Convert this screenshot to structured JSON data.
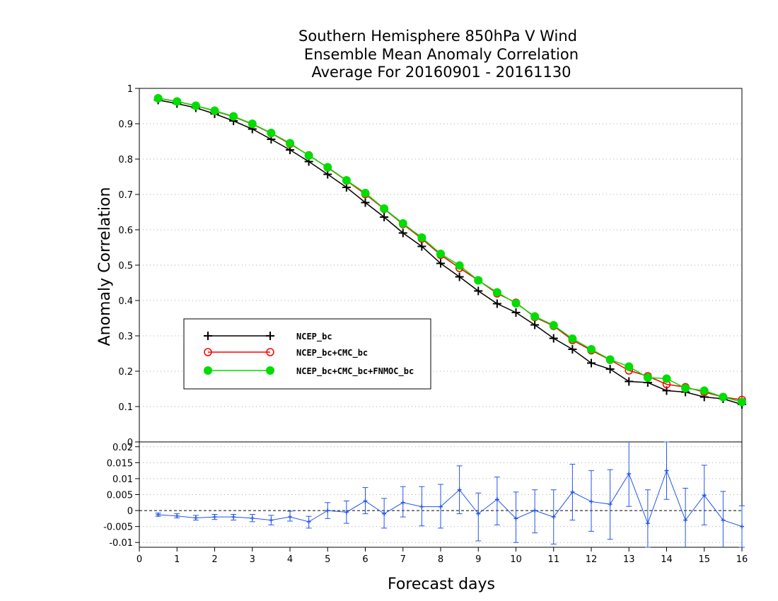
{
  "chart_data": [
    {
      "type": "line",
      "title_lines": [
        "Southern Hemisphere 850hPa V Wind",
        "Ensemble Mean Anomaly Correlation",
        "Average For 20160901 - 20161130"
      ],
      "xlabel": "Forecast days",
      "ylabel": "Anomaly Correlation",
      "xlim": [
        0,
        16
      ],
      "ylim": [
        0,
        1
      ],
      "x_ticks": [
        "0",
        "1",
        "2",
        "3",
        "4",
        "5",
        "6",
        "7",
        "8",
        "9",
        "10",
        "11",
        "12",
        "13",
        "14",
        "15",
        "16"
      ],
      "y_ticks": [
        "0",
        "0.1",
        "0.2",
        "0.3",
        "0.4",
        "0.5",
        "0.6",
        "0.7",
        "0.8",
        "0.9",
        "1"
      ],
      "grid": "horizontal dotted",
      "legend_position": "left-middle",
      "x": [
        0.5,
        1,
        1.5,
        2,
        2.5,
        3,
        3.5,
        4,
        4.5,
        5,
        5.5,
        6,
        6.5,
        7,
        7.5,
        8,
        8.5,
        9,
        9.5,
        10,
        10.5,
        11,
        11.5,
        12,
        12.5,
        13,
        13.5,
        14,
        14.5,
        15,
        15.5,
        16
      ],
      "series": [
        {
          "name": "NCEP_bc",
          "color": "#000000",
          "marker": "plus",
          "values": [
            0.967,
            0.957,
            0.945,
            0.928,
            0.908,
            0.885,
            0.856,
            0.826,
            0.793,
            0.757,
            0.72,
            0.677,
            0.636,
            0.591,
            0.553,
            0.505,
            0.467,
            0.427,
            0.391,
            0.366,
            0.331,
            0.293,
            0.262,
            0.223,
            0.206,
            0.171,
            0.168,
            0.145,
            0.141,
            0.127,
            0.122,
            0.106
          ]
        },
        {
          "name": "NCEP_bc+CMC_bc",
          "color": "#ff0000",
          "marker": "open-circle",
          "values": [
            0.972,
            0.963,
            0.951,
            0.936,
            0.92,
            0.899,
            0.873,
            0.843,
            0.811,
            0.776,
            0.739,
            0.701,
            0.659,
            0.616,
            0.575,
            0.529,
            0.492,
            0.457,
            0.42,
            0.394,
            0.353,
            0.328,
            0.288,
            0.259,
            0.232,
            0.202,
            0.186,
            0.163,
            0.155,
            0.141,
            0.127,
            0.119
          ]
        },
        {
          "name": "NCEP_bc+CMC_bc+FNMOC_bc",
          "color": "#00dd00",
          "marker": "filled-circle",
          "values": [
            0.972,
            0.963,
            0.951,
            0.937,
            0.921,
            0.9,
            0.874,
            0.845,
            0.81,
            0.777,
            0.74,
            0.704,
            0.66,
            0.618,
            0.578,
            0.532,
            0.499,
            0.457,
            0.423,
            0.392,
            0.355,
            0.33,
            0.292,
            0.262,
            0.233,
            0.213,
            0.182,
            0.179,
            0.152,
            0.145,
            0.127,
            0.113
          ]
        }
      ]
    },
    {
      "type": "line",
      "xlabel": "Forecast days",
      "xlim": [
        0,
        16
      ],
      "ylim": [
        -0.0115,
        0.0215
      ],
      "y_ticks": [
        "-0.01",
        "-0.005",
        "0",
        "0.005",
        "0.01",
        "0.015",
        "0.02"
      ],
      "x_ticks": [
        "0",
        "1",
        "2",
        "3",
        "4",
        "5",
        "6",
        "7",
        "8",
        "9",
        "10",
        "11",
        "12",
        "13",
        "14",
        "15",
        "16"
      ],
      "grid": "horizontal dotted",
      "zero_line": "dashed",
      "series": [
        {
          "color": "#2255ee",
          "marker": "error-bars",
          "x": [
            0.5,
            1,
            1.5,
            2,
            2.5,
            3,
            3.5,
            4,
            4.5,
            5,
            5.5,
            6,
            6.5,
            7,
            7.5,
            8,
            8.5,
            9,
            9.5,
            10,
            10.5,
            11,
            11.5,
            12,
            12.5,
            13,
            13.5,
            14,
            14.5,
            15,
            15.5,
            16
          ],
          "values": [
            -0.0013,
            -0.0017,
            -0.0023,
            -0.002,
            -0.002,
            -0.0024,
            -0.003,
            -0.002,
            -0.0035,
            0,
            -0.0005,
            0.003,
            -0.001,
            0.0025,
            0.0012,
            0.0012,
            0.0065,
            -0.001,
            0.0035,
            -0.0025,
            0.0,
            -0.002,
            0.0058,
            0.0028,
            0.002,
            0.0115,
            -0.004,
            0.0125,
            -0.003,
            0.0048,
            -0.003,
            -0.005
          ],
          "lower": [
            -0.0018,
            -0.0023,
            -0.003,
            -0.0028,
            -0.003,
            -0.0035,
            -0.0045,
            -0.0033,
            -0.0055,
            -0.0025,
            -0.004,
            -0.001,
            -0.0055,
            -0.002,
            -0.0048,
            -0.0055,
            -0.001,
            -0.0095,
            -0.0045,
            -0.01,
            -0.007,
            -0.0105,
            -0.003,
            -0.0065,
            -0.009,
            0.0013,
            -0.0115,
            0.0035,
            -0.0125,
            -0.0045,
            -0.012,
            -0.0115
          ],
          "upper": [
            -0.0008,
            -0.001,
            -0.0015,
            -0.0012,
            -0.0012,
            -0.0012,
            -0.0015,
            -0.0002,
            -0.0018,
            0.0025,
            0.003,
            0.0072,
            0.0038,
            0.0075,
            0.0075,
            0.0082,
            0.014,
            0.0055,
            0.0105,
            0.0058,
            0.0065,
            0.0065,
            0.0145,
            0.0125,
            0.0128,
            0.022,
            0.0065,
            0.0215,
            0.007,
            0.0142,
            0.006,
            0.0015
          ]
        }
      ]
    }
  ]
}
